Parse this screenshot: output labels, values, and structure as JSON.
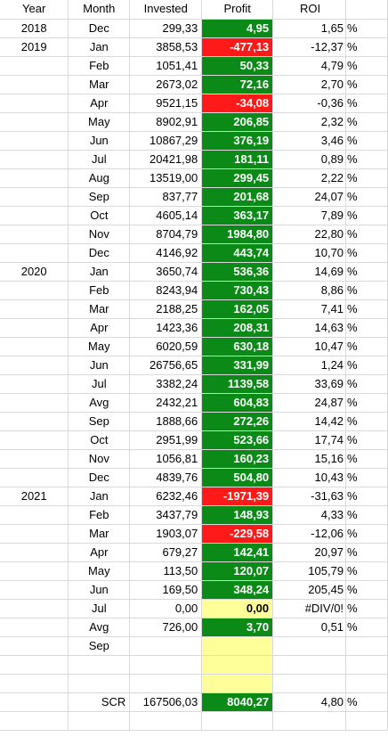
{
  "headers": {
    "year": "Year",
    "month": "Month",
    "invested": "Invested",
    "profit": "Profit",
    "roi": "ROI"
  },
  "colors": {
    "positive": "#0b8a17",
    "negative": "#ff1a1a",
    "highlight": "#ffff99"
  },
  "rows": [
    {
      "year": "2018",
      "month": "Dec",
      "invested": "299,33",
      "profit": "4,95",
      "roi": "1,65",
      "pct": "%",
      "status": "pos"
    },
    {
      "year": "2019",
      "month": "Jan",
      "invested": "3858,53",
      "profit": "-477,13",
      "roi": "-12,37",
      "pct": "%",
      "status": "neg"
    },
    {
      "year": "",
      "month": "Feb",
      "invested": "1051,41",
      "profit": "50,33",
      "roi": "4,79",
      "pct": "%",
      "status": "pos"
    },
    {
      "year": "",
      "month": "Mar",
      "invested": "2673,02",
      "profit": "72,16",
      "roi": "2,70",
      "pct": "%",
      "status": "pos"
    },
    {
      "year": "",
      "month": "Apr",
      "invested": "9521,15",
      "profit": "-34,08",
      "roi": "-0,36",
      "pct": "%",
      "status": "neg"
    },
    {
      "year": "",
      "month": "May",
      "invested": "8902,91",
      "profit": "206,85",
      "roi": "2,32",
      "pct": "%",
      "status": "pos"
    },
    {
      "year": "",
      "month": "Jun",
      "invested": "10867,29",
      "profit": "376,19",
      "roi": "3,46",
      "pct": "%",
      "status": "pos"
    },
    {
      "year": "",
      "month": "Jul",
      "invested": "20421,98",
      "profit": "181,11",
      "roi": "0,89",
      "pct": "%",
      "status": "pos"
    },
    {
      "year": "",
      "month": "Aug",
      "invested": "13519,00",
      "profit": "299,45",
      "roi": "2,22",
      "pct": "%",
      "status": "pos"
    },
    {
      "year": "",
      "month": "Sep",
      "invested": "837,77",
      "profit": "201,68",
      "roi": "24,07",
      "pct": "%",
      "status": "pos"
    },
    {
      "year": "",
      "month": "Oct",
      "invested": "4605,14",
      "profit": "363,17",
      "roi": "7,89",
      "pct": "%",
      "status": "pos"
    },
    {
      "year": "",
      "month": "Nov",
      "invested": "8704,79",
      "profit": "1984,80",
      "roi": "22,80",
      "pct": "%",
      "status": "pos"
    },
    {
      "year": "",
      "month": "Dec",
      "invested": "4146,92",
      "profit": "443,74",
      "roi": "10,70",
      "pct": "%",
      "status": "pos"
    },
    {
      "year": "2020",
      "month": "Jan",
      "invested": "3650,74",
      "profit": "536,36",
      "roi": "14,69",
      "pct": "%",
      "status": "pos"
    },
    {
      "year": "",
      "month": "Feb",
      "invested": "8243,94",
      "profit": "730,43",
      "roi": "8,86",
      "pct": "%",
      "status": "pos"
    },
    {
      "year": "",
      "month": "Mar",
      "invested": "2188,25",
      "profit": "162,05",
      "roi": "7,41",
      "pct": "%",
      "status": "pos"
    },
    {
      "year": "",
      "month": "Apr",
      "invested": "1423,36",
      "profit": "208,31",
      "roi": "14,63",
      "pct": "%",
      "status": "pos"
    },
    {
      "year": "",
      "month": "May",
      "invested": "6020,59",
      "profit": "630,18",
      "roi": "10,47",
      "pct": "%",
      "status": "pos"
    },
    {
      "year": "",
      "month": "Jun",
      "invested": "26756,65",
      "profit": "331,99",
      "roi": "1,24",
      "pct": "%",
      "status": "pos"
    },
    {
      "year": "",
      "month": "Jul",
      "invested": "3382,24",
      "profit": "1139,58",
      "roi": "33,69",
      "pct": "%",
      "status": "pos"
    },
    {
      "year": "",
      "month": "Avg",
      "invested": "2432,21",
      "profit": "604,83",
      "roi": "24,87",
      "pct": "%",
      "status": "pos"
    },
    {
      "year": "",
      "month": "Sep",
      "invested": "1888,66",
      "profit": "272,26",
      "roi": "14,42",
      "pct": "%",
      "status": "pos"
    },
    {
      "year": "",
      "month": "Oct",
      "invested": "2951,99",
      "profit": "523,66",
      "roi": "17,74",
      "pct": "%",
      "status": "pos"
    },
    {
      "year": "",
      "month": "Nov",
      "invested": "1056,81",
      "profit": "160,23",
      "roi": "15,16",
      "pct": "%",
      "status": "pos"
    },
    {
      "year": "",
      "month": "Dec",
      "invested": "4839,76",
      "profit": "504,80",
      "roi": "10,43",
      "pct": "%",
      "status": "pos"
    },
    {
      "year": "2021",
      "month": "Jan",
      "invested": "6232,46",
      "profit": "-1971,39",
      "roi": "-31,63",
      "pct": "%",
      "status": "neg"
    },
    {
      "year": "",
      "month": "Feb",
      "invested": "3437,79",
      "profit": "148,93",
      "roi": "4,33",
      "pct": "%",
      "status": "pos"
    },
    {
      "year": "",
      "month": "Mar",
      "invested": "1903,07",
      "profit": "-229,58",
      "roi": "-12,06",
      "pct": "%",
      "status": "neg"
    },
    {
      "year": "",
      "month": "Apr",
      "invested": "679,27",
      "profit": "142,41",
      "roi": "20,97",
      "pct": "%",
      "status": "pos"
    },
    {
      "year": "",
      "month": "May",
      "invested": "113,50",
      "profit": "120,07",
      "roi": "105,79",
      "pct": "%",
      "status": "pos"
    },
    {
      "year": "",
      "month": "Jun",
      "invested": "169,50",
      "profit": "348,24",
      "roi": "205,45",
      "pct": "%",
      "status": "pos"
    },
    {
      "year": "",
      "month": "Jul",
      "invested": "0,00",
      "profit": "0,00",
      "roi": "#DIV/0!",
      "pct": "%",
      "status": "zero"
    },
    {
      "year": "",
      "month": "Avg",
      "invested": "726,00",
      "profit": "3,70",
      "roi": "0,51",
      "pct": "%",
      "status": "pos"
    },
    {
      "year": "",
      "month": "Sep",
      "invested": "",
      "profit": "",
      "roi": "",
      "pct": "",
      "status": "blank"
    },
    {
      "year": "",
      "month": "",
      "invested": "",
      "profit": "",
      "roi": "",
      "pct": "",
      "status": "blank"
    },
    {
      "year": "",
      "month": "",
      "invested": "",
      "profit": "",
      "roi": "",
      "pct": "",
      "status": "blank"
    },
    {
      "year": "",
      "month": "SCR",
      "invested": "167506,03",
      "profit": "8040,27",
      "roi": "4,80",
      "pct": "%",
      "status": "pos",
      "month_align": "right"
    },
    {
      "year": "",
      "month": "",
      "invested": "",
      "profit": "",
      "roi": "",
      "pct": "",
      "status": "none"
    }
  ]
}
